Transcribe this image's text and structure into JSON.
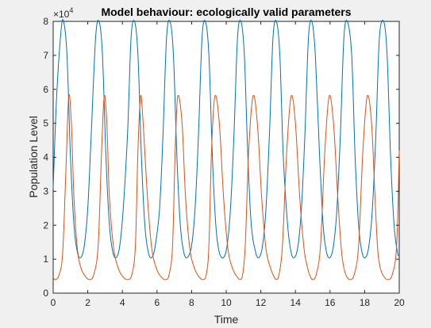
{
  "chart_data": {
    "type": "line",
    "title": "Model behaviour: ecologically valid parameters",
    "xlabel": "Time",
    "ylabel": "Population Level",
    "y_exponent_label": "×10",
    "y_exponent": "4",
    "xlim": [
      0,
      20
    ],
    "ylim": [
      0,
      80000
    ],
    "xticks": [
      0,
      2,
      4,
      6,
      8,
      10,
      12,
      14,
      16,
      18,
      20
    ],
    "yticks": [
      0,
      10000,
      20000,
      30000,
      40000,
      50000,
      60000,
      70000,
      80000
    ],
    "ytick_labels": [
      "0",
      "1",
      "2",
      "3",
      "4",
      "5",
      "6",
      "7",
      "8"
    ],
    "grid": false,
    "legend": "none",
    "series": [
      {
        "color": "#0072bd",
        "x": [
          0,
          0.2,
          0.45,
          0.6,
          0.8,
          1.0,
          1.2,
          1.4,
          1.6,
          1.8,
          2.0,
          2.2,
          2.45,
          2.65,
          2.85,
          3.05,
          3.25,
          3.45,
          3.65,
          3.85,
          4.05,
          4.3,
          4.5,
          4.7,
          4.9,
          5.1,
          5.3,
          5.5,
          5.7,
          5.9,
          6.15,
          6.35,
          6.55,
          6.75,
          6.95,
          7.15,
          7.35,
          7.55,
          7.75,
          8.0,
          8.2,
          8.4,
          8.6,
          8.8,
          9.0,
          9.2,
          9.4,
          9.6,
          9.85,
          10.05,
          10.25,
          10.45,
          10.65,
          10.85,
          11.05,
          11.25,
          11.45,
          11.7,
          11.9,
          12.1,
          12.3,
          12.5,
          12.7,
          12.9,
          13.1,
          13.3,
          13.55,
          13.75,
          13.95,
          14.15,
          14.35,
          14.55,
          14.75,
          14.95,
          15.15,
          15.4,
          15.6,
          15.8,
          16.0,
          16.2,
          16.4,
          16.6,
          16.8,
          17.0,
          17.25,
          17.45,
          17.65,
          17.85,
          18.05,
          18.25,
          18.45,
          18.65,
          18.85,
          19.1,
          19.3,
          19.5,
          19.7,
          19.9,
          20.0
        ],
        "y": [
          31000,
          58000,
          77000,
          80000,
          70000,
          40000,
          20000,
          12000,
          10500,
          14000,
          25000,
          47000,
          75000,
          80000,
          70000,
          40000,
          20000,
          12000,
          10500,
          14000,
          25000,
          47000,
          75000,
          80000,
          70000,
          40000,
          20000,
          12000,
          10500,
          14000,
          25000,
          47000,
          75000,
          80000,
          70000,
          40000,
          20000,
          12000,
          10500,
          14000,
          25000,
          47000,
          75000,
          80000,
          70000,
          40000,
          20000,
          12000,
          10500,
          14000,
          25000,
          47000,
          75000,
          80000,
          70000,
          40000,
          20000,
          12000,
          10500,
          14000,
          25000,
          47000,
          75000,
          80000,
          70000,
          40000,
          20000,
          12000,
          10500,
          14000,
          25000,
          47000,
          75000,
          80000,
          70000,
          40000,
          20000,
          12000,
          10500,
          14000,
          25000,
          47000,
          75000,
          80000,
          70000,
          40000,
          20000,
          12000,
          10500,
          14000,
          25000,
          47000,
          75000,
          80000,
          70000,
          40000,
          20000,
          12000,
          11000
        ]
      },
      {
        "color": "#d95319",
        "x": [
          0,
          0.15,
          0.35,
          0.55,
          0.75,
          0.9,
          1.05,
          1.2,
          1.4,
          1.6,
          1.85,
          2.1,
          2.35,
          2.6,
          2.8,
          2.95,
          3.1,
          3.25,
          3.5,
          3.75,
          4.0,
          4.3,
          4.55,
          4.75,
          4.9,
          5.05,
          5.2,
          5.45,
          5.7,
          5.95,
          6.2,
          6.5,
          6.7,
          6.9,
          7.05,
          7.2,
          7.45,
          7.65,
          7.9,
          8.15,
          8.4,
          8.65,
          8.85,
          9.0,
          9.15,
          9.35,
          9.6,
          9.85,
          10.1,
          10.35,
          10.6,
          10.8,
          10.95,
          11.1,
          11.3,
          11.55,
          11.8,
          12.05,
          12.3,
          12.55,
          12.75,
          12.9,
          13.05,
          13.25,
          13.5,
          13.75,
          14.0,
          14.25,
          14.5,
          14.7,
          14.85,
          15.0,
          15.2,
          15.45,
          15.7,
          15.95,
          16.2,
          16.45,
          16.65,
          16.8,
          16.95,
          17.15,
          17.4,
          17.65,
          17.9,
          18.15,
          18.4,
          18.6,
          18.75,
          18.9,
          19.1,
          19.35,
          19.6,
          19.85,
          20.0
        ],
        "y": [
          4500,
          4000,
          5500,
          12000,
          38000,
          58000,
          50000,
          28000,
          13000,
          7500,
          5000,
          4000,
          5500,
          14000,
          42000,
          58000,
          50000,
          28000,
          13000,
          7500,
          5000,
          4000,
          5500,
          14000,
          42000,
          58000,
          50000,
          28000,
          13000,
          7500,
          5000,
          4000,
          5500,
          14000,
          42000,
          58000,
          50000,
          28000,
          13000,
          7500,
          5000,
          4000,
          5500,
          14000,
          42000,
          58000,
          50000,
          28000,
          13000,
          7500,
          5000,
          4000,
          5500,
          14000,
          42000,
          58000,
          50000,
          28000,
          13000,
          7500,
          5000,
          4000,
          5500,
          14000,
          42000,
          58000,
          50000,
          28000,
          13000,
          7500,
          5000,
          4000,
          5500,
          14000,
          42000,
          58000,
          50000,
          28000,
          13000,
          7500,
          5000,
          4000,
          5500,
          14000,
          42000,
          58000,
          50000,
          28000,
          13000,
          7500,
          5000,
          4000,
          5500,
          14000,
          42000
        ]
      }
    ]
  }
}
